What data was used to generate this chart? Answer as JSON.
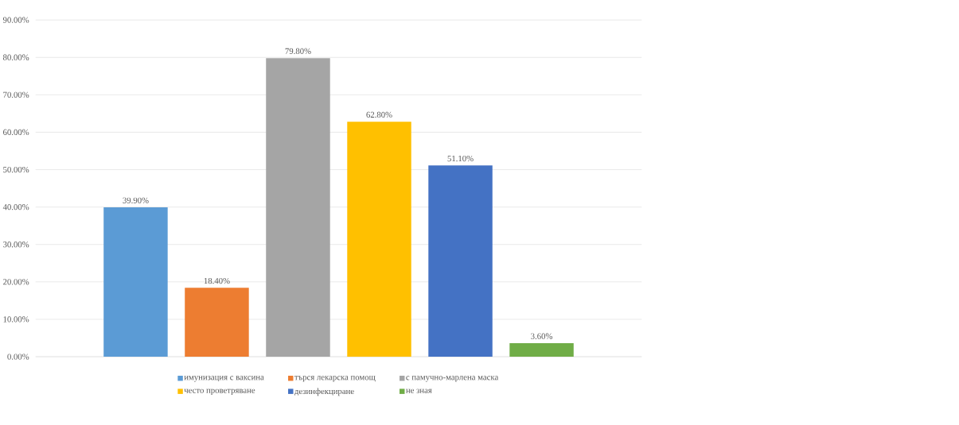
{
  "chart_data": {
    "type": "bar",
    "categories": [
      null
    ],
    "series": [
      {
        "name": "имунизация с ваксина",
        "color": "#5b9bd5",
        "values": [
          39.9
        ],
        "value_labels": [
          "39.90%"
        ]
      },
      {
        "name": "търся лекарска помощ",
        "color": "#ed7d31",
        "values": [
          18.4
        ],
        "value_labels": [
          "18.40%"
        ]
      },
      {
        "name": "с памучно-марлена маска",
        "color": "#a5a5a5",
        "values": [
          79.8
        ],
        "value_labels": [
          "79.80%"
        ]
      },
      {
        "name": "често проветряване",
        "color": "#ffc000",
        "values": [
          62.8
        ],
        "value_labels": [
          "62.80%"
        ]
      },
      {
        "name": "дезинфекциране",
        "color": "#4472c4",
        "values": [
          51.1
        ],
        "value_labels": [
          "51.10%"
        ]
      },
      {
        "name": "не зная",
        "color": "#70ad47",
        "values": [
          3.6
        ],
        "value_labels": [
          "3.60%"
        ]
      }
    ],
    "ylim": [
      0,
      90
    ],
    "yticks": [
      {
        "value": 0,
        "label": "0.00%"
      },
      {
        "value": 10,
        "label": "10.00%"
      },
      {
        "value": 20,
        "label": "20.00%"
      },
      {
        "value": 30,
        "label": "30.00%"
      },
      {
        "value": 40,
        "label": "40.00%"
      },
      {
        "value": 50,
        "label": "50.00%"
      },
      {
        "value": 60,
        "label": "60.00%"
      },
      {
        "value": 70,
        "label": "70.00%"
      },
      {
        "value": 80,
        "label": "80.00%"
      },
      {
        "value": 90,
        "label": "90.00%"
      }
    ],
    "grid": "y",
    "legend": "bottom"
  }
}
